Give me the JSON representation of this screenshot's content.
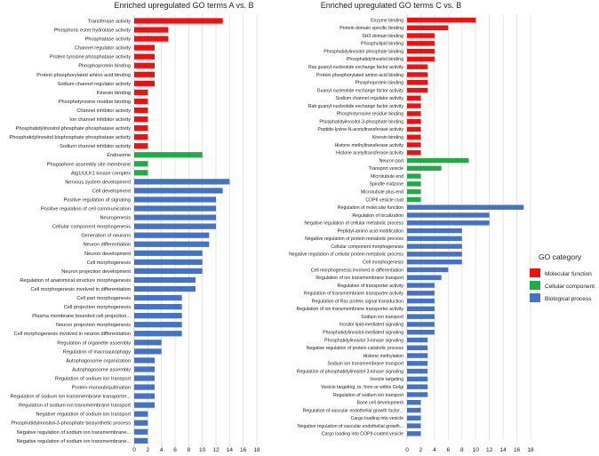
{
  "legend": {
    "title": "GO category",
    "items": [
      {
        "label": "Molecular function",
        "color": "#ee1111"
      },
      {
        "label": "Cellular component",
        "color": "#22aa44"
      },
      {
        "label": "Biological process",
        "color": "#4472c4"
      }
    ]
  },
  "chart_data": [
    {
      "type": "bar",
      "orientation": "horizontal",
      "title": "Enriched upregulated GO terms A vs. B",
      "xlim": [
        0,
        18
      ],
      "xticks": [
        0,
        2,
        4,
        6,
        8,
        10,
        12,
        14,
        16,
        18
      ],
      "grid": true,
      "categories": [
        "Transferase activity",
        "Phosphoric ester hydrolase activity",
        "Phosphatase activity",
        "Channel regulator activity",
        "Protein tyrosine phosphatase activity",
        "Phosphoprotein binding",
        "Protein phosphorylated amino acid binding",
        "Sodium channel regulator activity",
        "Kinesin binding",
        "Phosphotyrosine residue binding",
        "Channel inhibitor activity",
        "Ion channel inhibitor activity",
        "Phosphatidylinositol phosphate phosphatase activity",
        "Phosphatidylinositol bisphosphate phosphatase activity",
        "Sodium channel inhibitor activity",
        "Endosome",
        "Phagophore assembly site membrane",
        "Atg1/ULK1 kinase complex",
        "Nervous system development",
        "Cell development",
        "Positive regulation of signaling",
        "Positive regulation of cell communication",
        "Neurogenesis",
        "Cellular component morphogenesis",
        "Generation of neurons",
        "Neuron differentiation",
        "Neuron development",
        "Cell morphogenesis",
        "Neuron projection development",
        "Regulation of anatomical structure morphogenesis",
        "Cell morphogenesis involved in differentiation",
        "Cell part morphogenesis",
        "Cell projection morphogenesis",
        "Plasma membrane bounded cell projection...",
        "Neuron projection morphogenesis",
        "Cell morphogenesis involved in neuron differentiation",
        "Regulation of organelle assembly",
        "Regulation of macroautophagy",
        "Autophagosome organization",
        "Autophagosome assembly",
        "Regulation of sodium ion transport",
        "Protein monoubiquitination",
        "Regulation of sodium ion transmembrane transporter...",
        "Regulation of sodium ion transmembrane transport",
        "Negative regulation of sodium ion transport",
        "Phosphatidylinositol-3-phosphate biosynthetic process",
        "Negative regulation of sodium ion transmembrane...",
        "Negative regulation of sodium ion transmembrane..."
      ],
      "values": [
        13,
        5,
        5,
        3,
        3,
        3,
        3,
        3,
        2,
        2,
        2,
        2,
        2,
        2,
        2,
        10,
        2,
        2,
        14,
        13,
        12,
        12,
        12,
        12,
        11,
        11,
        10,
        10,
        10,
        9,
        9,
        7,
        7,
        7,
        7,
        7,
        4,
        4,
        3,
        3,
        3,
        3,
        3,
        3,
        2,
        2,
        2,
        2
      ],
      "category": [
        "MF",
        "MF",
        "MF",
        "MF",
        "MF",
        "MF",
        "MF",
        "MF",
        "MF",
        "MF",
        "MF",
        "MF",
        "MF",
        "MF",
        "MF",
        "CC",
        "CC",
        "CC",
        "BP",
        "BP",
        "BP",
        "BP",
        "BP",
        "BP",
        "BP",
        "BP",
        "BP",
        "BP",
        "BP",
        "BP",
        "BP",
        "BP",
        "BP",
        "BP",
        "BP",
        "BP",
        "BP",
        "BP",
        "BP",
        "BP",
        "BP",
        "BP",
        "BP",
        "BP",
        "BP",
        "BP",
        "BP",
        "BP"
      ]
    },
    {
      "type": "bar",
      "orientation": "horizontal",
      "title": "Enriched upregulated GO terms C vs. B",
      "xlim": [
        0,
        18
      ],
      "xticks": [
        0,
        2,
        4,
        6,
        8,
        10,
        12,
        14,
        16,
        18
      ],
      "grid": true,
      "categories": [
        "Enzyme binding",
        "Protein domain specific binding",
        "SH3 domain binding",
        "Phospholipid binding",
        "Phosphatidylinositol phosphate binding",
        "Phosphatidylinositol binding",
        "Ras guanyl-nucleotide exchange factor activity",
        "Protein phosphorylated amino acid binding",
        "Phosphoprotein binding",
        "Guanyl-nucleotide exchange factor activity",
        "Sodium channel regulator activity",
        "Rab guanyl-nucleotide exchange factor activity",
        "Phosphotyrosine residue binding",
        "Phosphatidylinositol-3-phosphate binding",
        "Peptide-lysine-N-acetyltransferase activity",
        "Kinesin binding",
        "Histone methyltransferase activity",
        "Histone acetyltransferase activity",
        "Neuron part",
        "Transport vesicle",
        "Microtubule end",
        "Spindle midzone",
        "Microtubule plus-end",
        "COPII vesicle coat",
        "Regulation of molecular function",
        "Regulation of localization",
        "Negative regulation of cellular metabolic process",
        "Peptidyl-amino acid modification",
        "Negative regulation of protein metabolic process",
        "Cellular component morphogenesis",
        "Negative regulation of cellular protein metabolic process",
        "Cell morphogenesis",
        "Cell morphogenesis involved in differentiation",
        "Regulation of ion transmembrane transport",
        "Regulation of transporter activity",
        "Regulation of transmembrane transporter activity",
        "Regulation of Ras protein signal transduction",
        "Regulation of ion transmembrane transporter activity",
        "Sodium ion transport",
        "Inositol lipid-mediated signaling",
        "Phosphatidylinositol-mediated signaling",
        "Phosphatidylinositol 3-kinase signaling",
        "Negative regulation of protein catabolic process",
        "Histone methylation",
        "Sodium ion transmembrane transport",
        "Regulation of phosphatidylinositol 3-kinase signaling",
        "Vesicle targeting",
        "Vesicle targeting, to, from or within Golgi",
        "Regulation of sodium ion transport",
        "Bone cell development",
        "Regulation of vascular endothelial growth factor...",
        "Cargo loading into vesicle",
        "Negative regulation of vascular endothelial growth...",
        "Cargo loading into COPII-coated vesicle"
      ],
      "values": [
        10,
        6,
        4,
        4,
        4,
        4,
        3,
        3,
        3,
        3,
        2,
        2,
        2,
        2,
        2,
        2,
        2,
        2,
        9,
        5,
        2,
        2,
        2,
        2,
        17,
        12,
        12,
        8,
        8,
        8,
        8,
        8,
        6,
        5,
        4,
        4,
        4,
        4,
        4,
        4,
        4,
        3,
        3,
        3,
        3,
        3,
        3,
        3,
        3,
        2,
        2,
        2,
        2,
        2
      ],
      "category": [
        "MF",
        "MF",
        "MF",
        "MF",
        "MF",
        "MF",
        "MF",
        "MF",
        "MF",
        "MF",
        "MF",
        "MF",
        "MF",
        "MF",
        "MF",
        "MF",
        "MF",
        "MF",
        "CC",
        "CC",
        "CC",
        "CC",
        "CC",
        "CC",
        "BP",
        "BP",
        "BP",
        "BP",
        "BP",
        "BP",
        "BP",
        "BP",
        "BP",
        "BP",
        "BP",
        "BP",
        "BP",
        "BP",
        "BP",
        "BP",
        "BP",
        "BP",
        "BP",
        "BP",
        "BP",
        "BP",
        "BP",
        "BP",
        "BP",
        "BP",
        "BP",
        "BP",
        "BP",
        "BP"
      ]
    }
  ]
}
